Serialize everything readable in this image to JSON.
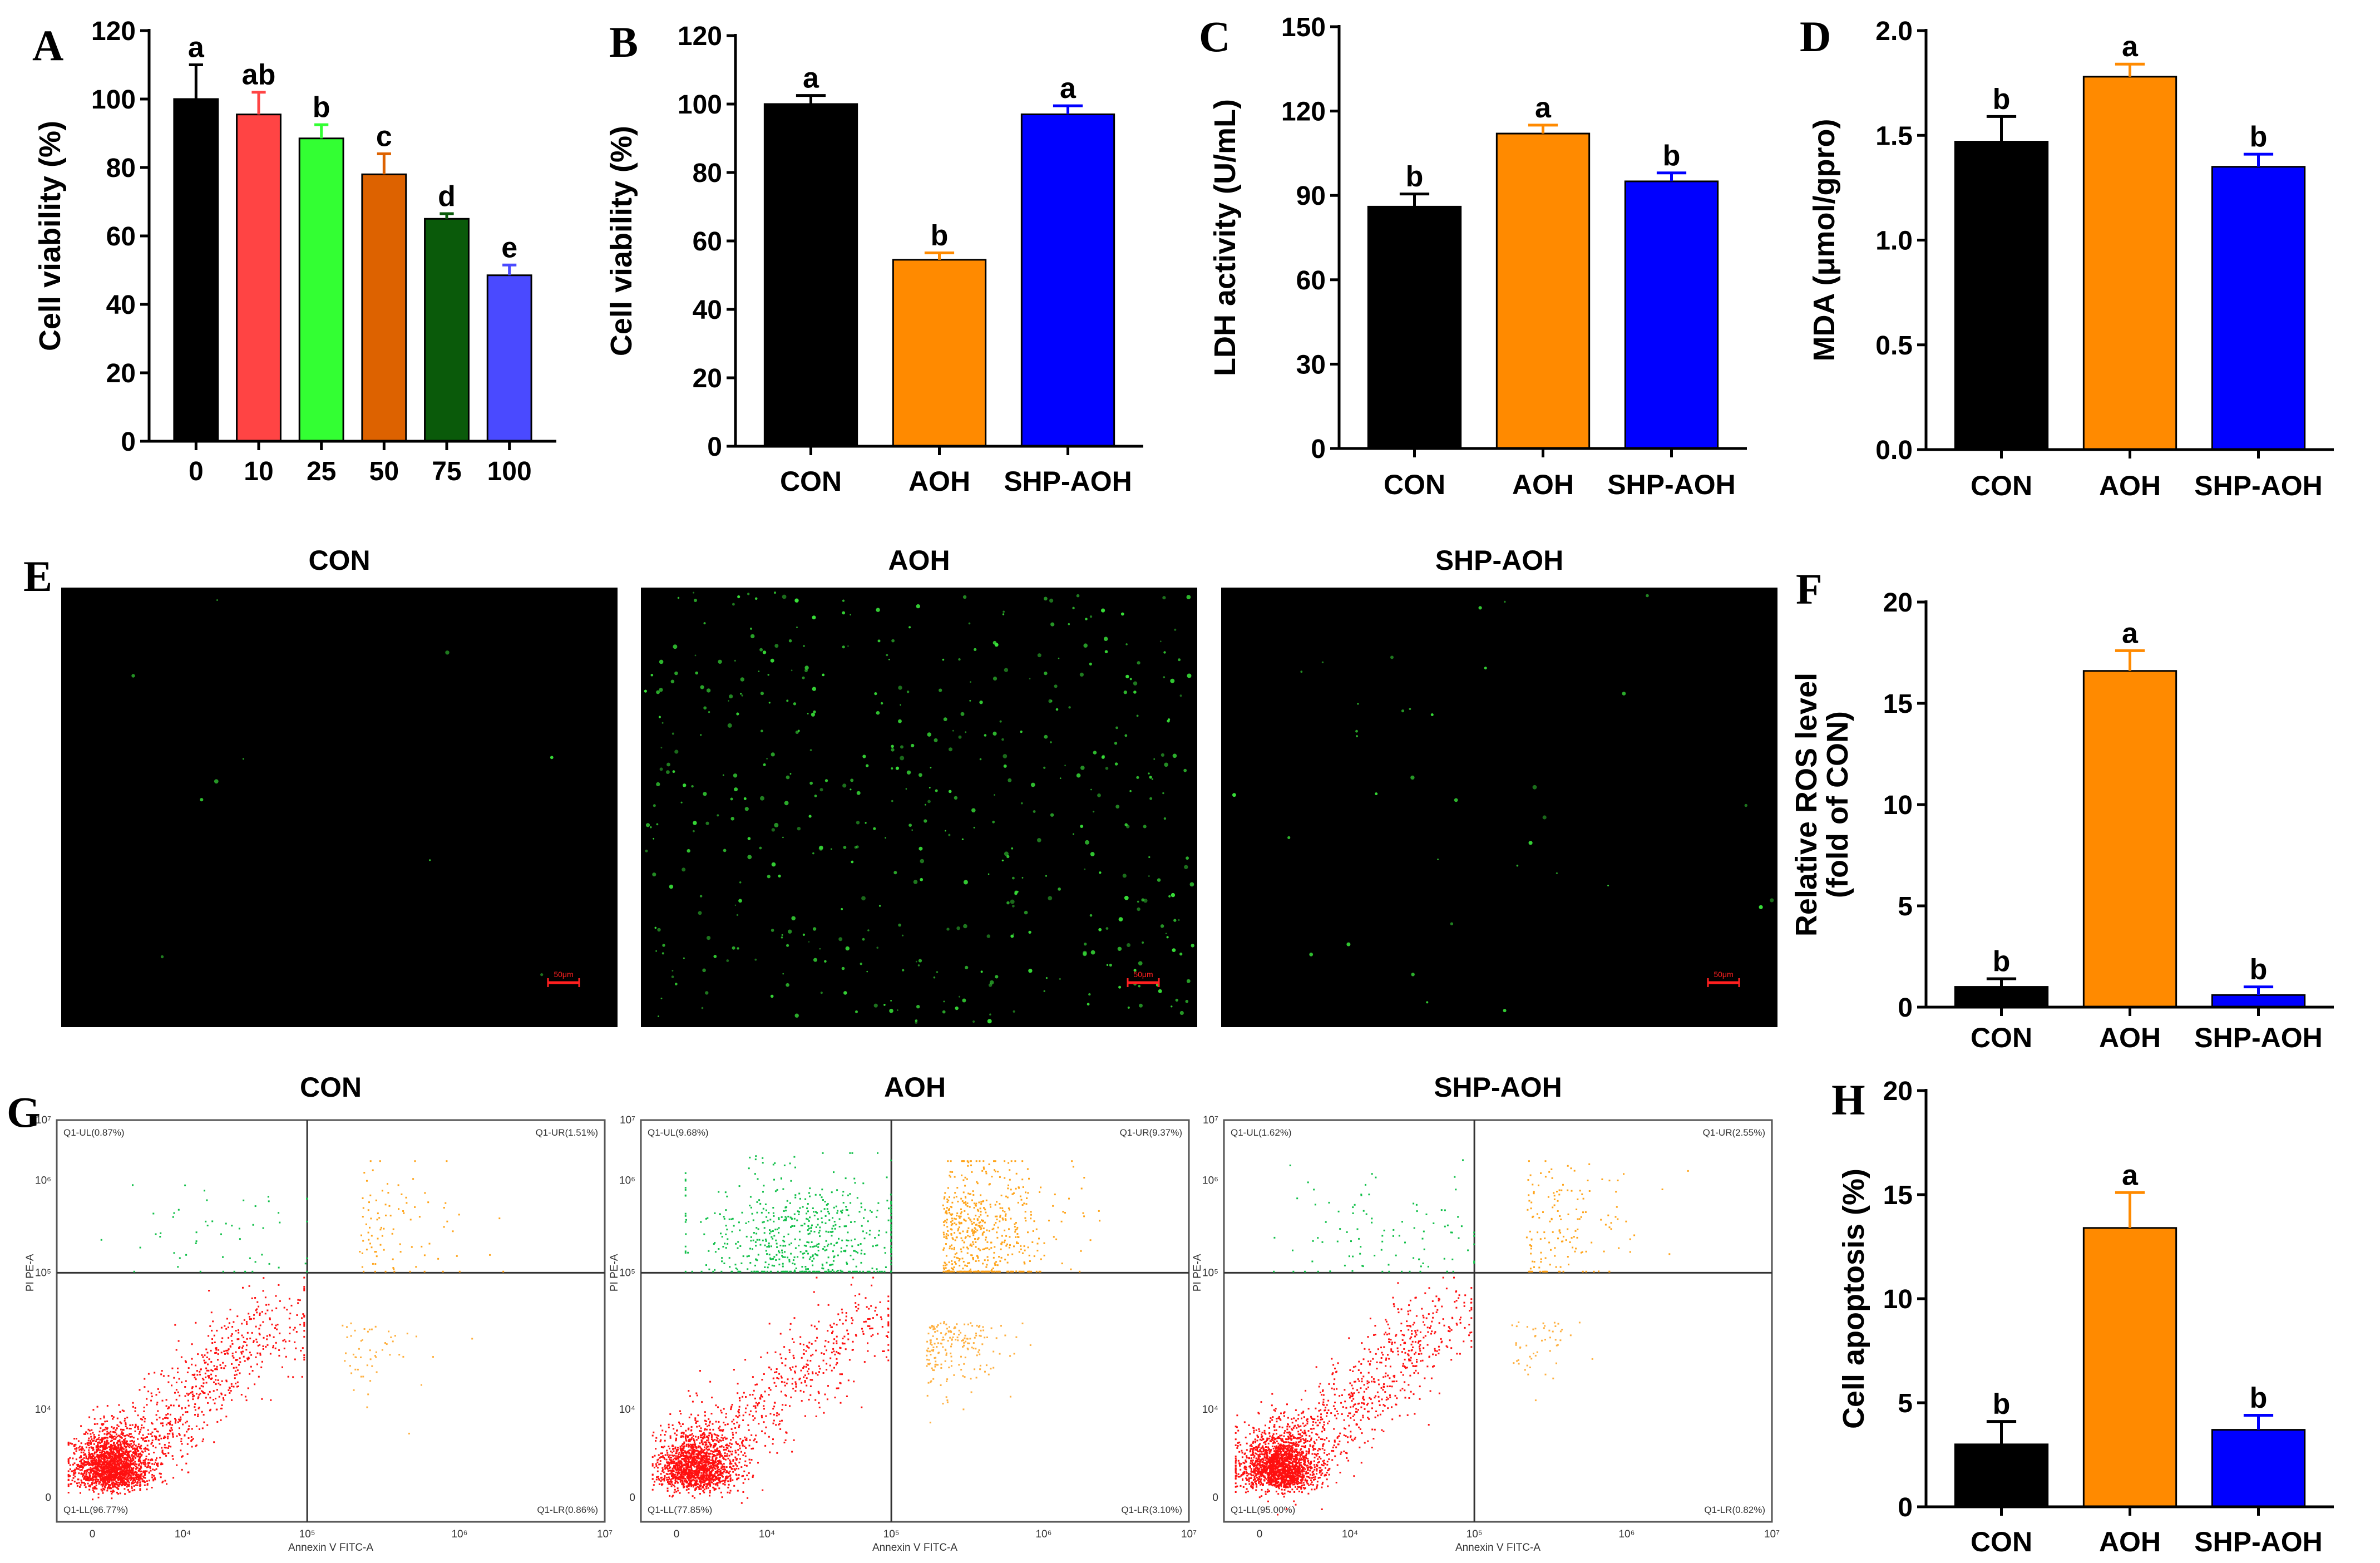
{
  "figure": {
    "panel_letters": [
      "A",
      "B",
      "C",
      "D",
      "E",
      "F",
      "G",
      "H"
    ],
    "colors": {
      "black": "#000000",
      "red": "#ff4444",
      "green": "#33ff33",
      "orange_dark": "#dd6200",
      "dark_green": "#0a5a0a",
      "blue_light": "#4a4aff",
      "orange": "#ff8a00",
      "blue": "#0000ff",
      "fluor": "#38e038"
    }
  },
  "chart_data": [
    {
      "panel": "A",
      "type": "bar",
      "xlabel": "",
      "ylabel": "Cell viability (%)",
      "categories": [
        "0",
        "10",
        "25",
        "50",
        "75",
        "100"
      ],
      "values": [
        100,
        95.5,
        88.5,
        78,
        65,
        48.5
      ],
      "errors": [
        10,
        6.5,
        4,
        6,
        1.5,
        3
      ],
      "letters": [
        "a",
        "ab",
        "b",
        "c",
        "d",
        "e"
      ],
      "colors": [
        "#000000",
        "#ff4444",
        "#33ff33",
        "#dd6200",
        "#0a5a0a",
        "#4a4aff"
      ],
      "ylim": [
        0,
        120
      ],
      "yticks": [
        0,
        20,
        40,
        60,
        80,
        100,
        120
      ]
    },
    {
      "panel": "B",
      "type": "bar",
      "xlabel": "",
      "ylabel": "Cell viability (%)",
      "categories": [
        "CON",
        "AOH",
        "SHP-AOH"
      ],
      "values": [
        100,
        54.5,
        97
      ],
      "errors": [
        2.5,
        2,
        2.5
      ],
      "letters": [
        "a",
        "b",
        "a"
      ],
      "colors": [
        "#000000",
        "#ff8a00",
        "#0000ff"
      ],
      "ylim": [
        0,
        120
      ],
      "yticks": [
        0,
        20,
        40,
        60,
        80,
        100,
        120
      ]
    },
    {
      "panel": "C",
      "type": "bar",
      "xlabel": "",
      "ylabel": "LDH activity (U/mL)",
      "categories": [
        "CON",
        "AOH",
        "SHP-AOH"
      ],
      "values": [
        86,
        112,
        95
      ],
      "errors": [
        4.5,
        3,
        3
      ],
      "letters": [
        "b",
        "a",
        "b"
      ],
      "colors": [
        "#000000",
        "#ff8a00",
        "#0000ff"
      ],
      "ylim": [
        0,
        150
      ],
      "yticks": [
        0,
        30,
        60,
        90,
        120,
        150
      ]
    },
    {
      "panel": "D",
      "type": "bar",
      "xlabel": "",
      "ylabel": "MDA (μmol/gpro)",
      "categories": [
        "CON",
        "AOH",
        "SHP-AOH"
      ],
      "values": [
        1.47,
        1.78,
        1.35
      ],
      "errors": [
        0.12,
        0.06,
        0.06
      ],
      "letters": [
        "b",
        "a",
        "b"
      ],
      "colors": [
        "#000000",
        "#ff8a00",
        "#0000ff"
      ],
      "ylim": [
        0,
        2.0
      ],
      "yticks": [
        "0.0",
        "0.5",
        "1.0",
        "1.5",
        "2.0"
      ]
    },
    {
      "panel": "F",
      "type": "bar",
      "xlabel": "",
      "ylabel": [
        "Relative ROS level",
        "(fold of CON)"
      ],
      "categories": [
        "CON",
        "AOH",
        "SHP-AOH"
      ],
      "values": [
        1.0,
        16.6,
        0.6
      ],
      "errors": [
        0.4,
        1.0,
        0.4
      ],
      "letters": [
        "b",
        "a",
        "b"
      ],
      "colors": [
        "#000000",
        "#ff8a00",
        "#0000ff"
      ],
      "ylim": [
        0,
        20
      ],
      "yticks": [
        0,
        5,
        10,
        15,
        20
      ]
    },
    {
      "panel": "H",
      "type": "bar",
      "xlabel": "",
      "ylabel": "Cell apoptosis (%)",
      "categories": [
        "CON",
        "AOH",
        "SHP-AOH"
      ],
      "values": [
        3.0,
        13.4,
        3.7
      ],
      "errors": [
        1.1,
        1.7,
        0.7
      ],
      "letters": [
        "b",
        "a",
        "b"
      ],
      "colors": [
        "#000000",
        "#ff8a00",
        "#0000ff"
      ],
      "ylim": [
        0,
        20
      ],
      "yticks": [
        0,
        5,
        10,
        15,
        20
      ]
    },
    {
      "panel": "E",
      "type": "image",
      "images": [
        {
          "title": "CON",
          "scale_bar": "50μm",
          "spot_count": 10
        },
        {
          "title": "AOH",
          "scale_bar": "50μm",
          "spot_count": 480
        },
        {
          "title": "SHP-AOH",
          "scale_bar": "50μm",
          "spot_count": 35
        }
      ]
    },
    {
      "panel": "G",
      "type": "scatter",
      "xlabel": "Annexin V FITC-A",
      "ylabel": "PI PE-A",
      "xticks": [
        "0",
        "10⁴",
        "10⁵",
        "10⁶",
        "10⁷"
      ],
      "yticks": [
        "0",
        "10⁴",
        "10⁵",
        "10⁶",
        "10⁷"
      ],
      "plots": [
        {
          "title": "CON",
          "UL": "Q1-UL(0.87%)",
          "UR": "Q1-UR(1.51%)",
          "LL": "Q1-LL(96.77%)",
          "LR": "Q1-LR(0.86%)",
          "pct": {
            "UL": 0.87,
            "UR": 1.51,
            "LL": 96.77,
            "LR": 0.86
          }
        },
        {
          "title": "AOH",
          "UL": "Q1-UL(9.68%)",
          "UR": "Q1-UR(9.37%)",
          "LL": "Q1-LL(77.85%)",
          "LR": "Q1-LR(3.10%)",
          "pct": {
            "UL": 9.68,
            "UR": 9.37,
            "LL": 77.85,
            "LR": 3.1
          }
        },
        {
          "title": "SHP-AOH",
          "UL": "Q1-UL(1.62%)",
          "UR": "Q1-UR(2.55%)",
          "LL": "Q1-LL(95.00%)",
          "LR": "Q1-LR(0.82%)",
          "pct": {
            "UL": 1.62,
            "UR": 2.55,
            "LL": 95.0,
            "LR": 0.82
          }
        }
      ]
    }
  ]
}
